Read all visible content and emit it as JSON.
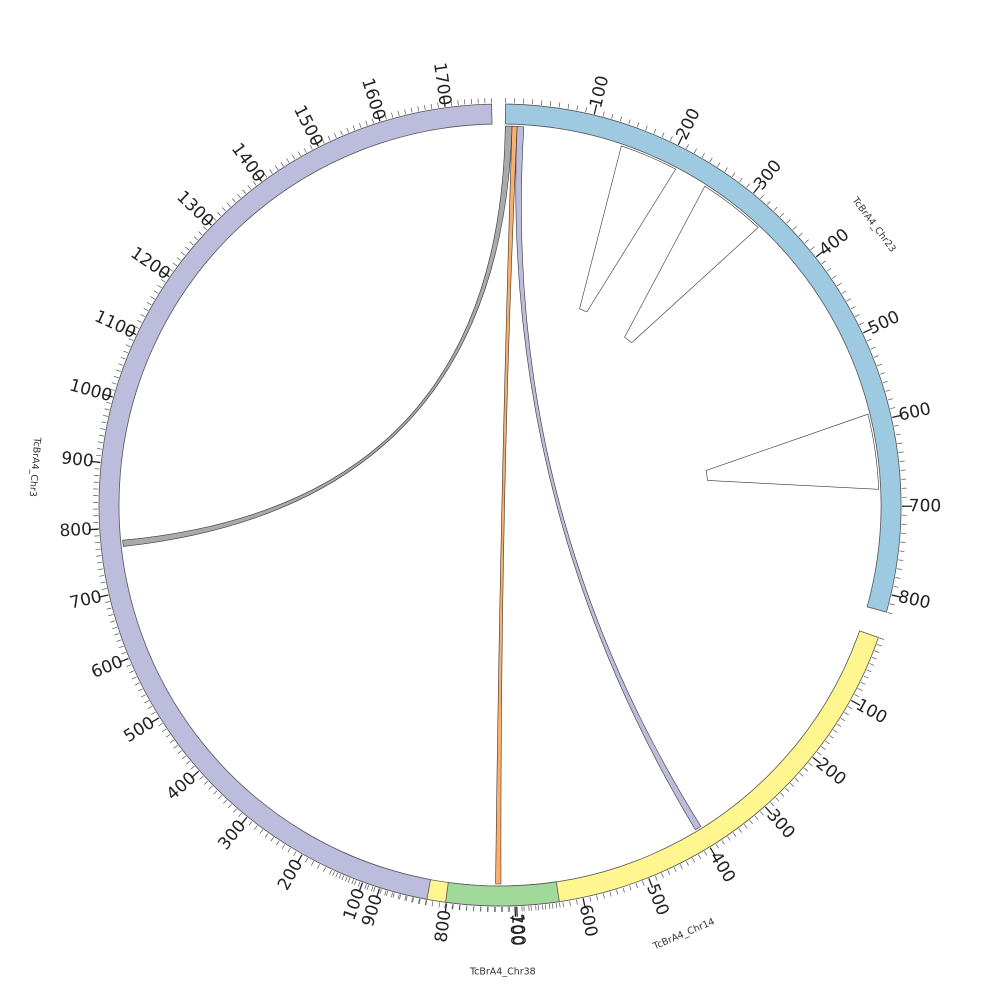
{
  "chart_data": {
    "type": "chord",
    "chromosomes": [
      {
        "id": "TcBrA4_Chr23",
        "label": "TcBrA4_Chr23",
        "length": 820,
        "color": "#9ecae1",
        "start_deg": 0.8,
        "end_deg": 105.5,
        "ticks": [
          100,
          200,
          300,
          400,
          500,
          600,
          700,
          800
        ],
        "show_label": true,
        "reverse": false
      },
      {
        "id": "TcBrA4_Chr14",
        "label": "TcBrA4_Chr14",
        "length": 970,
        "color": "#fff68f",
        "start_deg": 109.3,
        "end_deg": 204.3,
        "ticks": [
          100,
          200,
          300,
          400,
          500,
          600,
          700,
          800,
          900
        ],
        "show_label": true,
        "reverse": false
      },
      {
        "id": "TcBrA4_Chr38",
        "label": "TcBrA4_Chr38",
        "length": 160,
        "color": "#a1d99b",
        "start_deg": 171.5,
        "end_deg": 187.8,
        "ticks": [
          100
        ],
        "show_label": true,
        "reverse": true
      },
      {
        "id": "TcBrA4_Chr3",
        "label": "TcBrA4_Chr3",
        "length": 1770,
        "color": "#bcbddc",
        "start_deg": 190.5,
        "end_deg": 358.8,
        "ticks": [
          100,
          200,
          300,
          400,
          500,
          600,
          700,
          800,
          900,
          1000,
          1100,
          1200,
          1300,
          1400,
          1500,
          1600,
          1700
        ],
        "show_label": true,
        "reverse": false
      }
    ],
    "links": [
      {
        "a": {
          "chr": "TcBrA4_Chr23",
          "start": 0,
          "end": 8
        },
        "b": {
          "chr": "TcBrA4_Chr3",
          "start": 770,
          "end": 780
        },
        "color": "#aaaaaa"
      },
      {
        "a": {
          "chr": "TcBrA4_Chr23",
          "start": 8,
          "end": 14
        },
        "b": {
          "chr": "TcBrA4_Chr38",
          "start": 70,
          "end": 78
        },
        "color": "#fdae6b"
      },
      {
        "a": {
          "chr": "TcBrA4_Chr23",
          "start": 14,
          "end": 22
        },
        "b": {
          "chr": "TcBrA4_Chr14",
          "start": 395,
          "end": 405
        },
        "color": "#bcbddc"
      },
      {
        "a": {
          "chr": "TcBrA4_Chr23",
          "start": 140,
          "end": 210
        },
        "b": {
          "chr": "TcBrA4_Chr23",
          "start": 145,
          "end": 205
        },
        "color": "#ffffff"
      },
      {
        "a": {
          "chr": "TcBrA4_Chr23",
          "start": 250,
          "end": 330
        },
        "b": {
          "chr": "TcBrA4_Chr23",
          "start": 255,
          "end": 325
        },
        "color": "#ffffff"
      },
      {
        "a": {
          "chr": "TcBrA4_Chr23",
          "start": 590,
          "end": 680
        },
        "b": {
          "chr": "TcBrA4_Chr23",
          "start": 595,
          "end": 675
        },
        "color": "#ffffff"
      }
    ],
    "minor_tick_step": 10,
    "major_tick_step": 100
  }
}
